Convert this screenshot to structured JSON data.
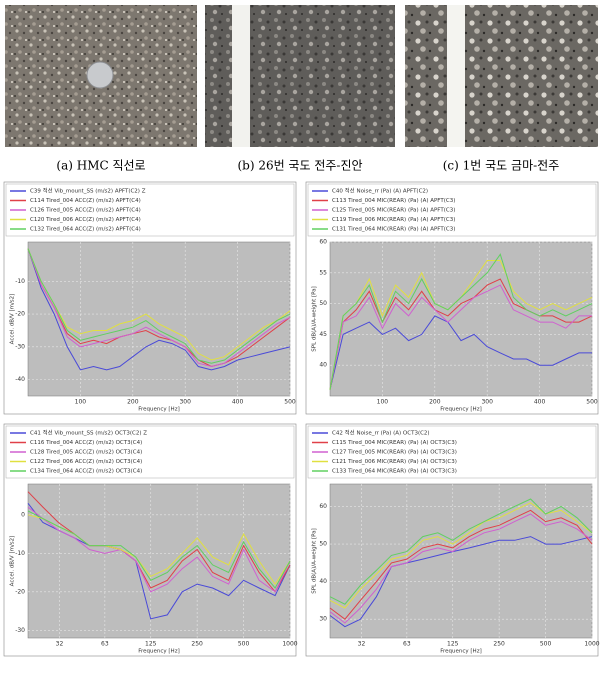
{
  "captions": [
    "(a) HMC 직선로",
    "(b) 26번 국도 전주-진안",
    "(c) 1번 국도 금마-전주"
  ],
  "chart_data": [
    {
      "type": "line",
      "xlabel": "Frequency [Hz]",
      "ylabel": "Accel. dB/V [m/s2]",
      "log_x": false,
      "grid": true,
      "x": [
        0,
        25,
        50,
        75,
        100,
        125,
        150,
        175,
        200,
        225,
        250,
        275,
        300,
        325,
        350,
        375,
        400,
        425,
        450,
        475,
        500
      ],
      "xlim": [
        0,
        500
      ],
      "xticks": [
        100,
        200,
        300,
        400,
        500
      ],
      "ylim": [
        -45,
        2
      ],
      "yticks": [
        -10,
        -20,
        -30,
        -40
      ],
      "series": [
        {
          "name": "C39 적선 Vib_mount_SS (m/s2) APFT(C2) Z",
          "color": "#4a4ad8",
          "values": [
            0,
            -12,
            -20,
            -30,
            -37,
            -36,
            -37,
            -36,
            -33,
            -30,
            -28,
            -29,
            -31,
            -36,
            -37,
            -36,
            -34,
            -33,
            -32,
            -31,
            -30
          ]
        },
        {
          "name": "C114 Tired_004 ACC(Z) (m/s2) APFT(C4)",
          "color": "#e04048",
          "values": [
            0,
            -11,
            -18,
            -26,
            -29,
            -28,
            -29,
            -27,
            -26,
            -25,
            -27,
            -28,
            -30,
            -34,
            -36,
            -35,
            -33,
            -30,
            -27,
            -24,
            -21
          ]
        },
        {
          "name": "C126 Tired_005 ACC(Z) (m/s2) APFT(C4)",
          "color": "#d060d0",
          "values": [
            0,
            -11,
            -18,
            -27,
            -30,
            -29,
            -28,
            -27,
            -26,
            -24,
            -26,
            -28,
            -30,
            -35,
            -36,
            -35,
            -32,
            -29,
            -26,
            -23,
            -21
          ]
        },
        {
          "name": "C120 Tired_006 ACC(Z) (m/s2) APFT(C4)",
          "color": "#e0e040",
          "values": [
            0,
            -10,
            -17,
            -24,
            -26,
            -25,
            -25,
            -23,
            -22,
            -20,
            -23,
            -25,
            -27,
            -32,
            -34,
            -33,
            -30,
            -27,
            -24,
            -22,
            -19
          ]
        },
        {
          "name": "C132 Tired_064 ACC(Z) (m/s2) APFT(C4)",
          "color": "#60d060",
          "values": [
            0,
            -10,
            -17,
            -25,
            -28,
            -27,
            -26,
            -25,
            -24,
            -22,
            -25,
            -27,
            -29,
            -34,
            -35,
            -34,
            -31,
            -28,
            -25,
            -22,
            -20
          ]
        }
      ]
    },
    {
      "type": "line",
      "xlabel": "Frequency [Hz]",
      "ylabel": "SPL dB(A)/A-weight [Pa]",
      "log_x": false,
      "grid": true,
      "x": [
        0,
        25,
        50,
        75,
        100,
        125,
        150,
        175,
        200,
        225,
        250,
        275,
        300,
        325,
        350,
        375,
        400,
        425,
        450,
        475,
        500
      ],
      "xlim": [
        0,
        500
      ],
      "xticks": [
        100,
        200,
        300,
        400,
        500
      ],
      "ylim": [
        35,
        60
      ],
      "yticks": [
        40,
        45,
        50,
        55,
        60
      ],
      "series": [
        {
          "name": "C40 적선 Noise_rr (Pa) (A) APFT(C2)",
          "color": "#4a4ad8",
          "values": [
            36,
            45,
            46,
            47,
            45,
            46,
            44,
            45,
            48,
            47,
            44,
            45,
            43,
            42,
            41,
            41,
            40,
            40,
            41,
            42,
            42
          ]
        },
        {
          "name": "C113 Tired_004 MIC(REAR) (Pa) (A) APFT(C3)",
          "color": "#e04048",
          "values": [
            36,
            47,
            49,
            52,
            47,
            51,
            49,
            52,
            49,
            48,
            50,
            51,
            53,
            54,
            50,
            49,
            48,
            48,
            47,
            47,
            48
          ]
        },
        {
          "name": "C125 Tired_005 MIC(REAR) (Pa) (A) APFT(C3)",
          "color": "#d060d0",
          "values": [
            36,
            47,
            48,
            51,
            46,
            50,
            48,
            51,
            49,
            47,
            49,
            51,
            52,
            53,
            49,
            48,
            47,
            47,
            46,
            48,
            48
          ]
        },
        {
          "name": "C119 Tired_006 MIC(REAR) (Pa) (A) APFT(C3)",
          "color": "#e0e040",
          "values": [
            36,
            48,
            50,
            54,
            48,
            53,
            51,
            55,
            50,
            49,
            51,
            54,
            57,
            57,
            52,
            50,
            49,
            50,
            49,
            50,
            51
          ]
        },
        {
          "name": "C131 Tired_064 MIC(REAR) (Pa) (A) APFT(C3)",
          "color": "#60d060",
          "values": [
            36,
            48,
            50,
            53,
            47,
            52,
            50,
            54,
            50,
            49,
            51,
            53,
            55,
            58,
            51,
            49,
            48,
            49,
            48,
            49,
            50
          ]
        }
      ]
    },
    {
      "type": "line",
      "xlabel": "Frequency [Hz]",
      "ylabel": "Accel. dB/V [m/s2]",
      "log_x": true,
      "grid": true,
      "x": [
        20,
        25,
        31.5,
        40,
        50,
        63,
        80,
        100,
        125,
        160,
        200,
        250,
        315,
        400,
        500,
        630,
        800,
        1000
      ],
      "xlim": [
        20,
        1000
      ],
      "xticks": [
        32,
        63,
        125,
        250,
        500,
        1000
      ],
      "ylim": [
        -32,
        8
      ],
      "yticks": [
        -30,
        -20,
        -10,
        0
      ],
      "series": [
        {
          "name": "C41 적선 Vib_mount_SS (m/s2) OCT3(C2) Z",
          "color": "#4a4ad8",
          "values": [
            3,
            -2,
            -4,
            -6,
            -8,
            -8,
            -9,
            -12,
            -27,
            -26,
            -20,
            -18,
            -19,
            -21,
            -17,
            -19,
            -21,
            -13
          ]
        },
        {
          "name": "C116 Tired_004 ACC(Z) (m/s2) OCT3(C4)",
          "color": "#e04048",
          "values": [
            6,
            2,
            -2,
            -5,
            -8,
            -8,
            -9,
            -12,
            -19,
            -17,
            -12,
            -9,
            -15,
            -17,
            -8,
            -15,
            -20,
            -13
          ]
        },
        {
          "name": "C128 Tired_005 ACC(Z) (m/s2) OCT3(C4)",
          "color": "#d060d0",
          "values": [
            2,
            -1,
            -4,
            -6,
            -9,
            -10,
            -9,
            -12,
            -20,
            -18,
            -14,
            -11,
            -16,
            -18,
            -9,
            -17,
            -20,
            -12
          ]
        },
        {
          "name": "C122 Tired_006 ACC(Z) (m/s2) OCT3(C4)",
          "color": "#e0e040",
          "values": [
            0,
            -1,
            -3,
            -5,
            -8,
            -8,
            -9,
            -11,
            -16,
            -14,
            -10,
            -6,
            -11,
            -13,
            -5,
            -12,
            -18,
            -12
          ]
        },
        {
          "name": "C134 Tired_064 ACC(Z) (m/s2) OCT3(C4)",
          "color": "#60d060",
          "values": [
            1,
            -1,
            -3,
            -5,
            -8,
            -8,
            -8,
            -11,
            -17,
            -15,
            -11,
            -8,
            -13,
            -15,
            -7,
            -14,
            -19,
            -12
          ]
        }
      ]
    },
    {
      "type": "line",
      "xlabel": "Frequency [Hz]",
      "ylabel": "SPL dB(A)/A-weight [Pa]",
      "log_x": true,
      "grid": true,
      "x": [
        20,
        25,
        31.5,
        40,
        50,
        63,
        80,
        100,
        125,
        160,
        200,
        250,
        315,
        400,
        500,
        630,
        800,
        1000
      ],
      "xlim": [
        20,
        1000
      ],
      "xticks": [
        32,
        63,
        125,
        250,
        500,
        1000
      ],
      "ylim": [
        25,
        66
      ],
      "yticks": [
        30,
        40,
        50,
        60
      ],
      "series": [
        {
          "name": "C42 적선 Noise_rr (Pa) (A) OCT3(C2)",
          "color": "#4a4ad8",
          "values": [
            31,
            28,
            30,
            36,
            44,
            45,
            46,
            47,
            48,
            49,
            50,
            51,
            51,
            52,
            50,
            50,
            51,
            52
          ]
        },
        {
          "name": "C115 Tired_004 MIC(REAR) (Pa) (A) OCT3(C3)",
          "color": "#e04048",
          "values": [
            33,
            30,
            35,
            40,
            45,
            46,
            49,
            50,
            49,
            52,
            54,
            55,
            57,
            59,
            56,
            57,
            55,
            50
          ]
        },
        {
          "name": "C127 Tired_005 MIC(REAR) (Pa) (A) OCT3(C3)",
          "color": "#d060d0",
          "values": [
            32,
            29,
            33,
            38,
            44,
            45,
            48,
            49,
            48,
            51,
            53,
            54,
            56,
            58,
            55,
            56,
            54,
            51
          ]
        },
        {
          "name": "C121 Tired_006 MIC(REAR) (Pa) (A) OCT3(C3)",
          "color": "#e0e040",
          "values": [
            35,
            33,
            38,
            42,
            46,
            47,
            51,
            52,
            50,
            53,
            56,
            57,
            59,
            61,
            58,
            59,
            56,
            53
          ]
        },
        {
          "name": "C133 Tired_064 MIC(REAR) (Pa) (A) OCT3(C3)",
          "color": "#60d060",
          "values": [
            36,
            34,
            39,
            43,
            47,
            48,
            52,
            53,
            51,
            54,
            56,
            58,
            60,
            62,
            58,
            60,
            57,
            53
          ]
        }
      ]
    }
  ]
}
